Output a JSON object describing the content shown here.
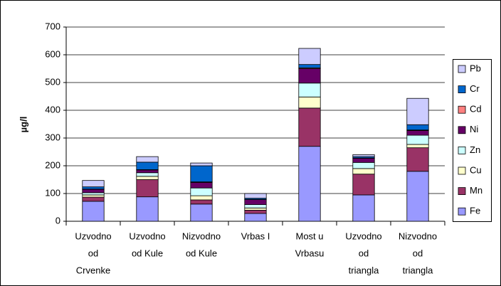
{
  "chart_data": {
    "type": "stacked_bar",
    "ylabel": "µg/l",
    "categories": [
      [
        "Uzvodno",
        "od",
        "Crvenke"
      ],
      [
        "Uzvodno",
        "od Kule"
      ],
      [
        "Nizvodno",
        "od Kule"
      ],
      [
        "Vrbas I"
      ],
      [
        "Most u",
        "Vrbasu"
      ],
      [
        "Uzvodno",
        "od",
        "triangla"
      ],
      [
        "Nizvodno",
        "od",
        "triangla"
      ]
    ],
    "series": [
      {
        "name": "Fe",
        "color": "#9999ff",
        "values": [
          72,
          88,
          62,
          28,
          270,
          95,
          180
        ]
      },
      {
        "name": "Mn",
        "color": "#993366",
        "values": [
          15,
          62,
          15,
          12,
          138,
          75,
          85
        ]
      },
      {
        "name": "Cu",
        "color": "#ffffcc",
        "values": [
          8,
          12,
          15,
          8,
          40,
          20,
          12
        ]
      },
      {
        "name": "Zn",
        "color": "#ccffff",
        "values": [
          8,
          13,
          28,
          12,
          50,
          22,
          33
        ]
      },
      {
        "name": "Ni",
        "color": "#660066",
        "values": [
          12,
          10,
          20,
          18,
          52,
          15,
          17
        ]
      },
      {
        "name": "Cd",
        "color": "#ff8080",
        "values": [
          1,
          1,
          2,
          1,
          3,
          1,
          2
        ]
      },
      {
        "name": "Cr",
        "color": "#0066cc",
        "values": [
          8,
          27,
          58,
          4,
          12,
          5,
          19
        ]
      },
      {
        "name": "Pb",
        "color": "#ccccff",
        "values": [
          23,
          20,
          10,
          17,
          58,
          7,
          95
        ]
      }
    ],
    "ylim": [
      0,
      700
    ],
    "yticks": [
      0,
      100,
      200,
      300,
      400,
      500,
      600,
      700
    ],
    "grid": true,
    "legend": "right"
  }
}
